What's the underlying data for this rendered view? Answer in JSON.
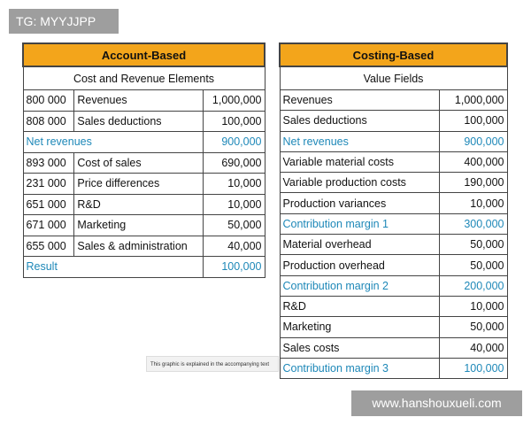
{
  "tag": "TG: MYYJJPP",
  "site": "www.hanshouxueli.com",
  "caption": "This graphic is explained in the accompanying text",
  "left": {
    "title": "Account-Based",
    "subtitle": "Cost and Revenue Elements",
    "rows": [
      {
        "code": "800 000",
        "label": "Revenues",
        "value": "1,000,000"
      },
      {
        "code": "808 000",
        "label": "Sales deductions",
        "value": "100,000"
      },
      {
        "label": "Net revenues",
        "value": "900,000",
        "total": true
      },
      {
        "code": "893 000",
        "label": "Cost of sales",
        "value": "690,000"
      },
      {
        "code": "231 000",
        "label": "Price differences",
        "value": "10,000"
      },
      {
        "code": "651 000",
        "label": "R&D",
        "value": "10,000"
      },
      {
        "code": "671 000",
        "label": "Marketing",
        "value": "50,000"
      },
      {
        "code": "655 000",
        "label": "Sales & administration",
        "value": "40,000"
      },
      {
        "label": "Result",
        "value": "100,000",
        "total": true
      }
    ]
  },
  "right": {
    "title": "Costing-Based",
    "subtitle": "Value Fields",
    "rows": [
      {
        "label": "Revenues",
        "value": "1,000,000"
      },
      {
        "label": "Sales deductions",
        "value": "100,000"
      },
      {
        "label": "Net revenues",
        "value": "900,000",
        "total": true
      },
      {
        "label": "Variable material costs",
        "value": "400,000"
      },
      {
        "label": "Variable production costs",
        "value": "190,000"
      },
      {
        "label": "Production variances",
        "value": "10,000"
      },
      {
        "label": "Contribution margin 1",
        "value": "300,000",
        "total": true
      },
      {
        "label": "Material overhead",
        "value": "50,000"
      },
      {
        "label": "Production overhead",
        "value": "50,000"
      },
      {
        "label": "Contribution margin 2",
        "value": "200,000",
        "total": true
      },
      {
        "label": "R&D",
        "value": "10,000"
      },
      {
        "label": "Marketing",
        "value": "50,000"
      },
      {
        "label": "Sales costs",
        "value": "40,000"
      },
      {
        "label": "Contribution margin 3",
        "value": "100,000",
        "total": true
      }
    ]
  }
}
